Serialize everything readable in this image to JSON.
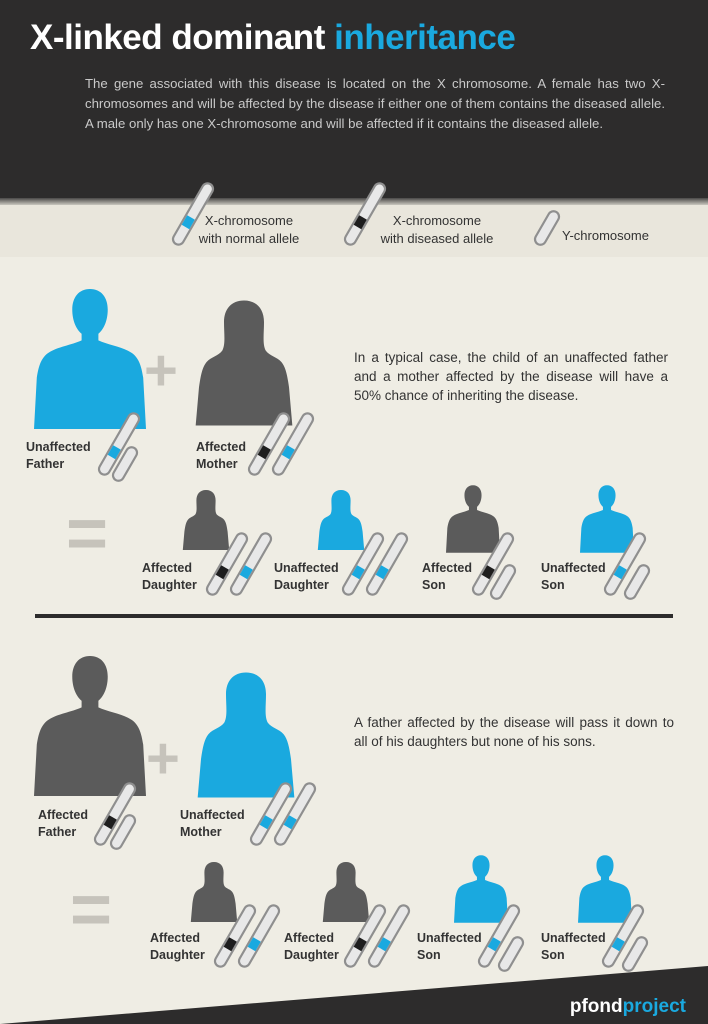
{
  "header": {
    "title_main": "X-linked dominant",
    "title_accent": "inheritance",
    "intro": "The gene associated with this disease is located on the X chromosome. A female has two X-chromosomes and will  be affected by the disease if either one of them contains the diseased allele. A male only has one X-chromosome and will be affected if it contains the diseased allele."
  },
  "legend": {
    "normal_line1": "X-chromosome",
    "normal_line2": "with normal  allele",
    "diseased_line1": "X-chromosome",
    "diseased_line2": "with diseased allele",
    "y_label": "Y-chromosome"
  },
  "case1": {
    "description": "In a typical case, the child of an unaffected father and a mother affected by the disease will have a 50% chance of inheriting the disease.",
    "father_line1": "Unaffected",
    "father_line2": "Father",
    "mother_line1": "Affected",
    "mother_line2": "Mother",
    "children": [
      {
        "line1": "Affected",
        "line2": "Daughter"
      },
      {
        "line1": "Unaffected",
        "line2": "Daughter"
      },
      {
        "line1": "Affected",
        "line2": "Son"
      },
      {
        "line1": "Unaffected",
        "line2": "Son"
      }
    ]
  },
  "case2": {
    "description": "A father affected by the disease will pass it down to all of his daughters but none of his sons.",
    "father_line1": "Affected",
    "father_line2": "Father",
    "mother_line1": "Unaffected",
    "mother_line2": "Mother",
    "children": [
      {
        "line1": "Affected",
        "line2": "Daughter"
      },
      {
        "line1": "Affected",
        "line2": "Daughter"
      },
      {
        "line1": "Unaffected",
        "line2": "Son"
      },
      {
        "line1": "Unaffected",
        "line2": "Son"
      }
    ]
  },
  "symbols": {
    "plus": "+",
    "equals": "="
  },
  "footer": {
    "logo_main": "pfond",
    "logo_accent": "project"
  },
  "colors": {
    "blue": "#1aa9df",
    "gray": "#5b5b5b",
    "dark": "#2d2c2c",
    "diseased": "#1e1e1e"
  }
}
